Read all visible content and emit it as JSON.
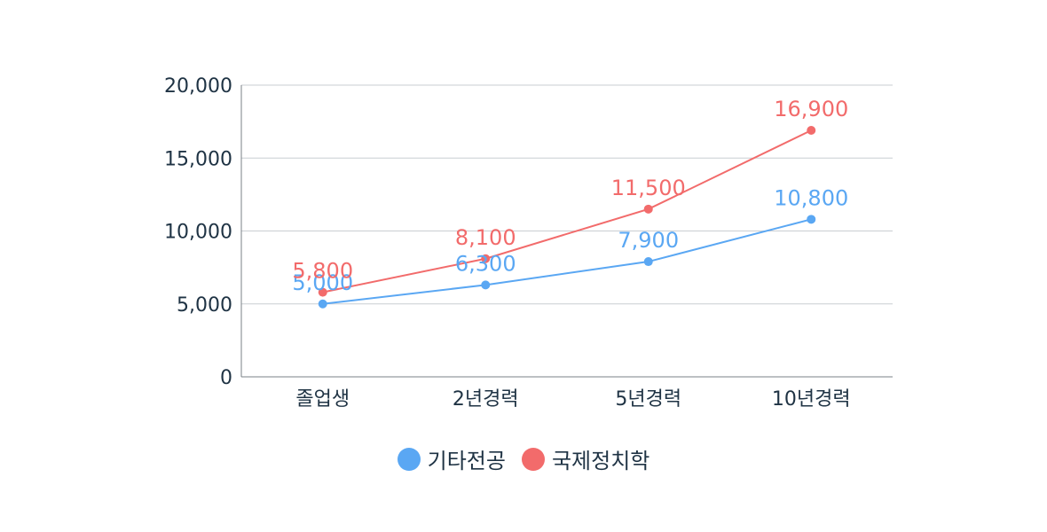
{
  "chart_data": {
    "type": "line",
    "categories": [
      "졸업생",
      "2년경력",
      "5년경력",
      "10년경력"
    ],
    "series": [
      {
        "name": "기타전공",
        "values": [
          5000,
          6300,
          7900,
          10800
        ],
        "color": "#5aa7f3"
      },
      {
        "name": "국제정치학",
        "values": [
          5800,
          8100,
          11500,
          16900
        ],
        "color": "#f26b6b"
      }
    ],
    "ylim": [
      0,
      20000
    ],
    "yticks": [
      "0",
      "5,000",
      "10,000",
      "15,000",
      "20,000"
    ],
    "ytick_values": [
      0,
      5000,
      10000,
      15000,
      20000
    ],
    "data_labels": [
      [
        "5,000",
        "6,300",
        "7,900",
        "10,800"
      ],
      [
        "5,800",
        "8,100",
        "11,500",
        "16,900"
      ]
    ],
    "grid": true,
    "legend_position": "bottom"
  }
}
